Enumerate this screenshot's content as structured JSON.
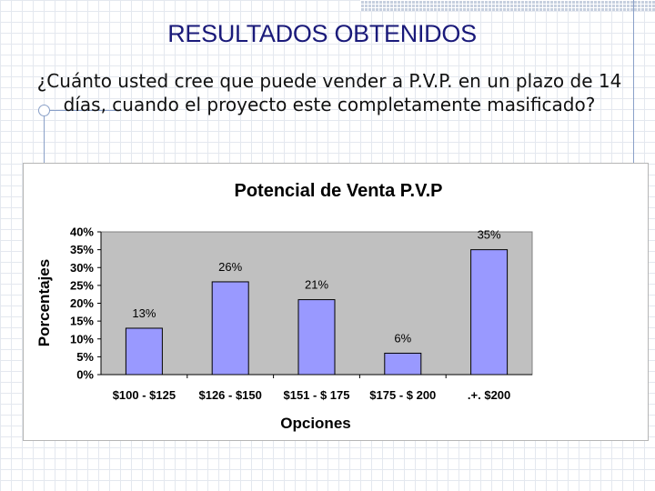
{
  "slide": {
    "title": "RESULTADOS OBTENIDOS",
    "question": "¿Cuánto usted cree que puede vender a P.V.P. en un plazo de 14 días, cuando el proyecto este completamente masificado?"
  },
  "chart_data": {
    "type": "bar",
    "title": "Potencial de Venta P.V.P",
    "xlabel": "Opciones",
    "ylabel": "Porcentajes",
    "categories": [
      "$100 - $125",
      "$126 - $150",
      "$151 - $ 175",
      "$175 - $ 200",
      ".+. $200"
    ],
    "values": [
      13,
      26,
      21,
      6,
      35
    ],
    "value_labels": [
      "13%",
      "26%",
      "21%",
      "6%",
      "35%"
    ],
    "ylim": [
      0,
      40
    ],
    "yticks": [
      "0%",
      "5%",
      "10%",
      "15%",
      "20%",
      "25%",
      "30%",
      "35%",
      "40%"
    ],
    "grid": false,
    "legend": "none",
    "colors": {
      "bar": "#9999ff",
      "bar_border": "#000000",
      "plot_bg": "#c0c0c0",
      "title_text": "#1a1a7a"
    }
  }
}
